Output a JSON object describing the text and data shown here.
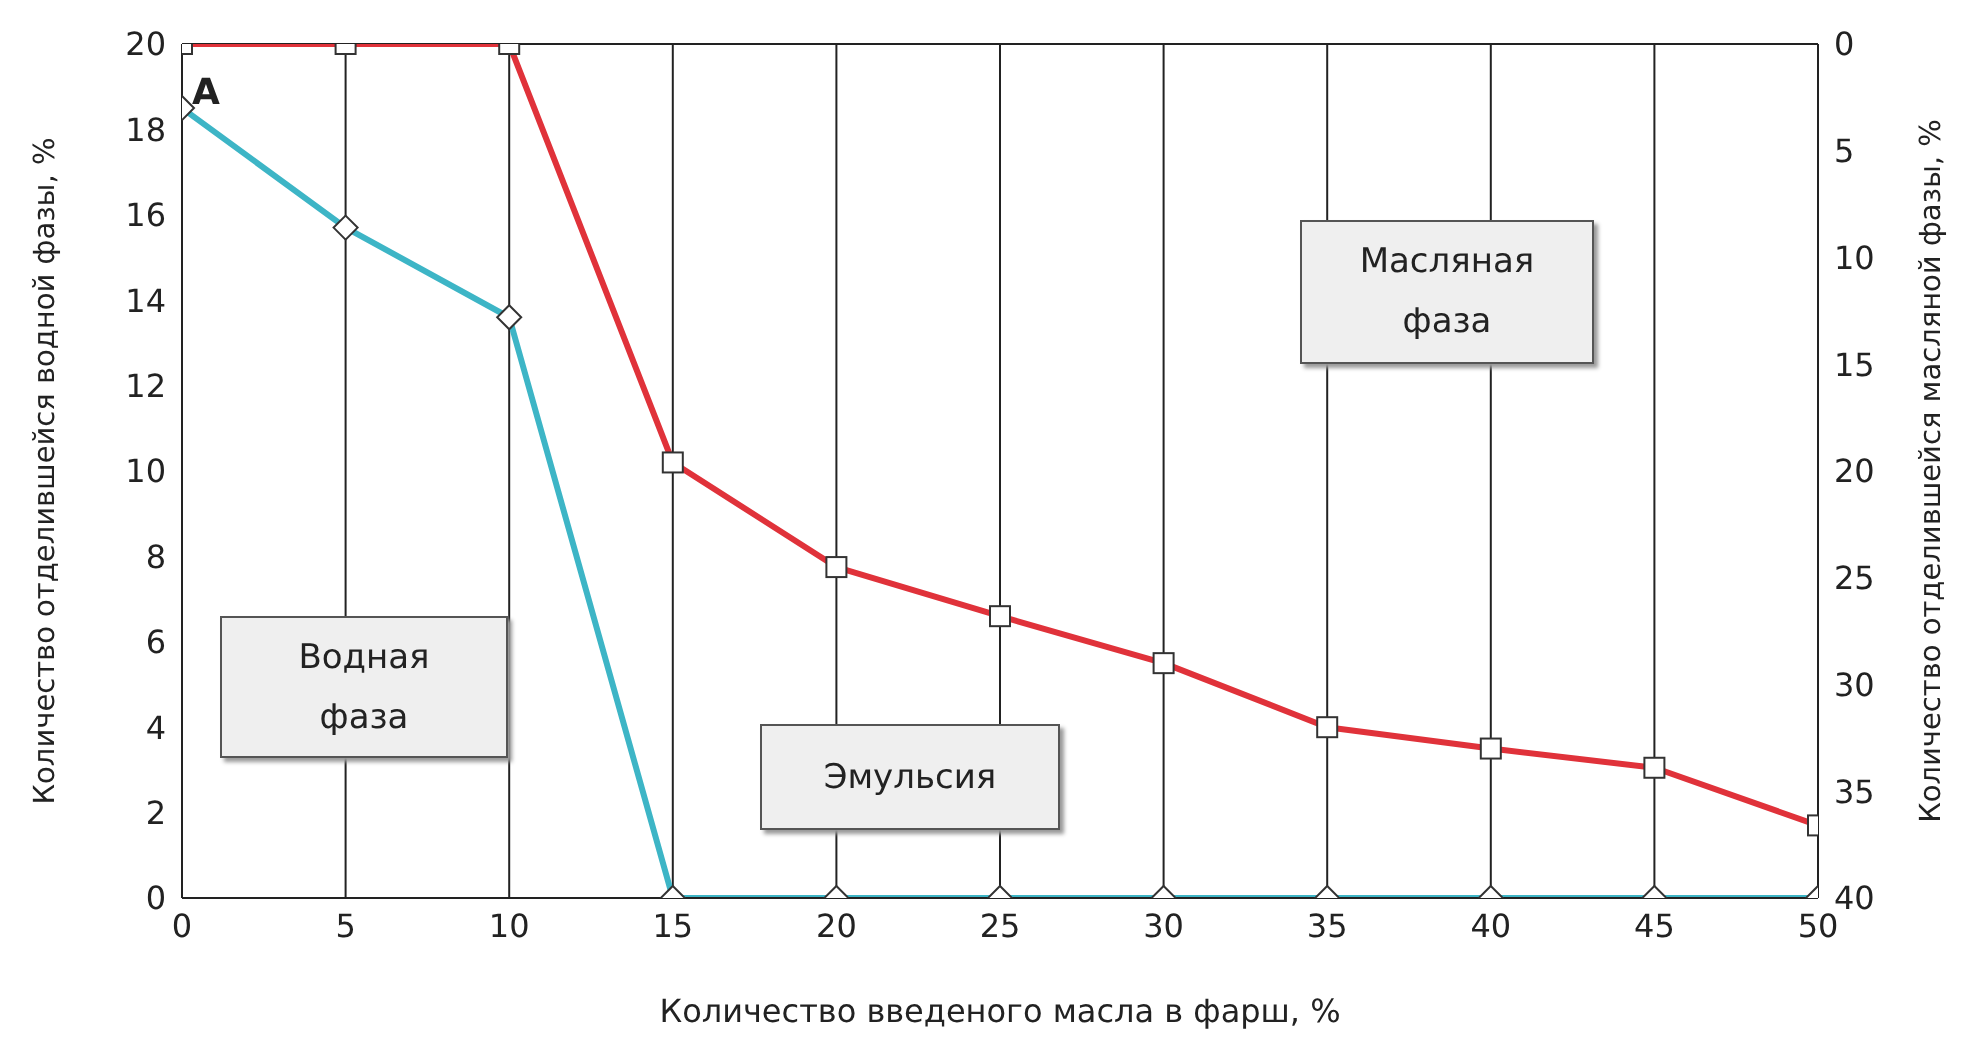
{
  "chart_data": {
    "type": "line",
    "xlabel": "Количество введеного масла в фарш, %",
    "ylabel": "Количество отделившейся водной фазы, %",
    "y2label": "Количество отделившейся масляной фазы, %",
    "x": [
      0,
      5,
      10,
      15,
      20,
      25,
      30,
      35,
      40,
      45,
      50
    ],
    "series": [
      {
        "color": "#3db5c6",
        "marker": "diamond",
        "values": [
          18.5,
          15.7,
          13.6,
          0,
          0,
          0,
          0,
          0,
          0,
          0,
          0
        ]
      },
      {
        "color": "#e0323a",
        "marker": "square",
        "axis": "y2",
        "values": [
          0,
          0,
          0,
          19.6,
          24.5,
          26.8,
          29.0,
          32.0,
          33.0,
          33.9,
          36.6
        ]
      }
    ],
    "xlim": [
      0,
      50
    ],
    "xticks": [
      0,
      5,
      10,
      15,
      20,
      25,
      30,
      35,
      40,
      45,
      50
    ],
    "ylim": [
      0,
      20
    ],
    "yticks": [
      0,
      2,
      4,
      6,
      8,
      10,
      12,
      14,
      16,
      18,
      20
    ],
    "y2lim": [
      40,
      0
    ],
    "y2ticks": [
      0,
      5,
      10,
      15,
      20,
      25,
      30,
      35,
      40
    ],
    "grid": true,
    "legend": false,
    "line_style": "solid",
    "annotations": [
      "A",
      "Водная\nфаза",
      "Эмульсия",
      "Масляная\nфаза"
    ]
  }
}
